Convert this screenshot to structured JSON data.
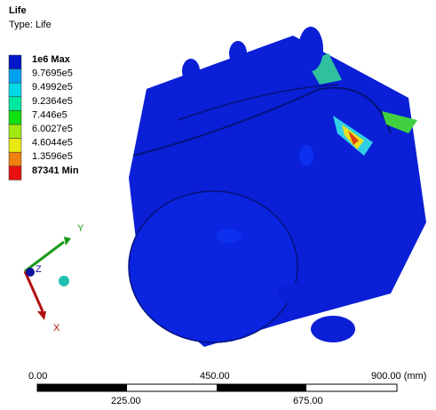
{
  "header": {
    "title": "Life",
    "subtitle": "Type: Life"
  },
  "legend": {
    "labels": [
      "1e6 Max",
      "9.7695e5",
      "9.4992e5",
      "9.2364e5",
      "7.446e5",
      "6.0027e5",
      "4.6044e5",
      "1.3596e5",
      "87341 Min"
    ]
  },
  "triad": {
    "y": "Y",
    "z": "Z",
    "x": "X"
  },
  "scale": {
    "top": [
      "0.00",
      "450.00",
      "900.00 (mm)"
    ],
    "bottom": [
      "225.00",
      "675.00"
    ]
  }
}
